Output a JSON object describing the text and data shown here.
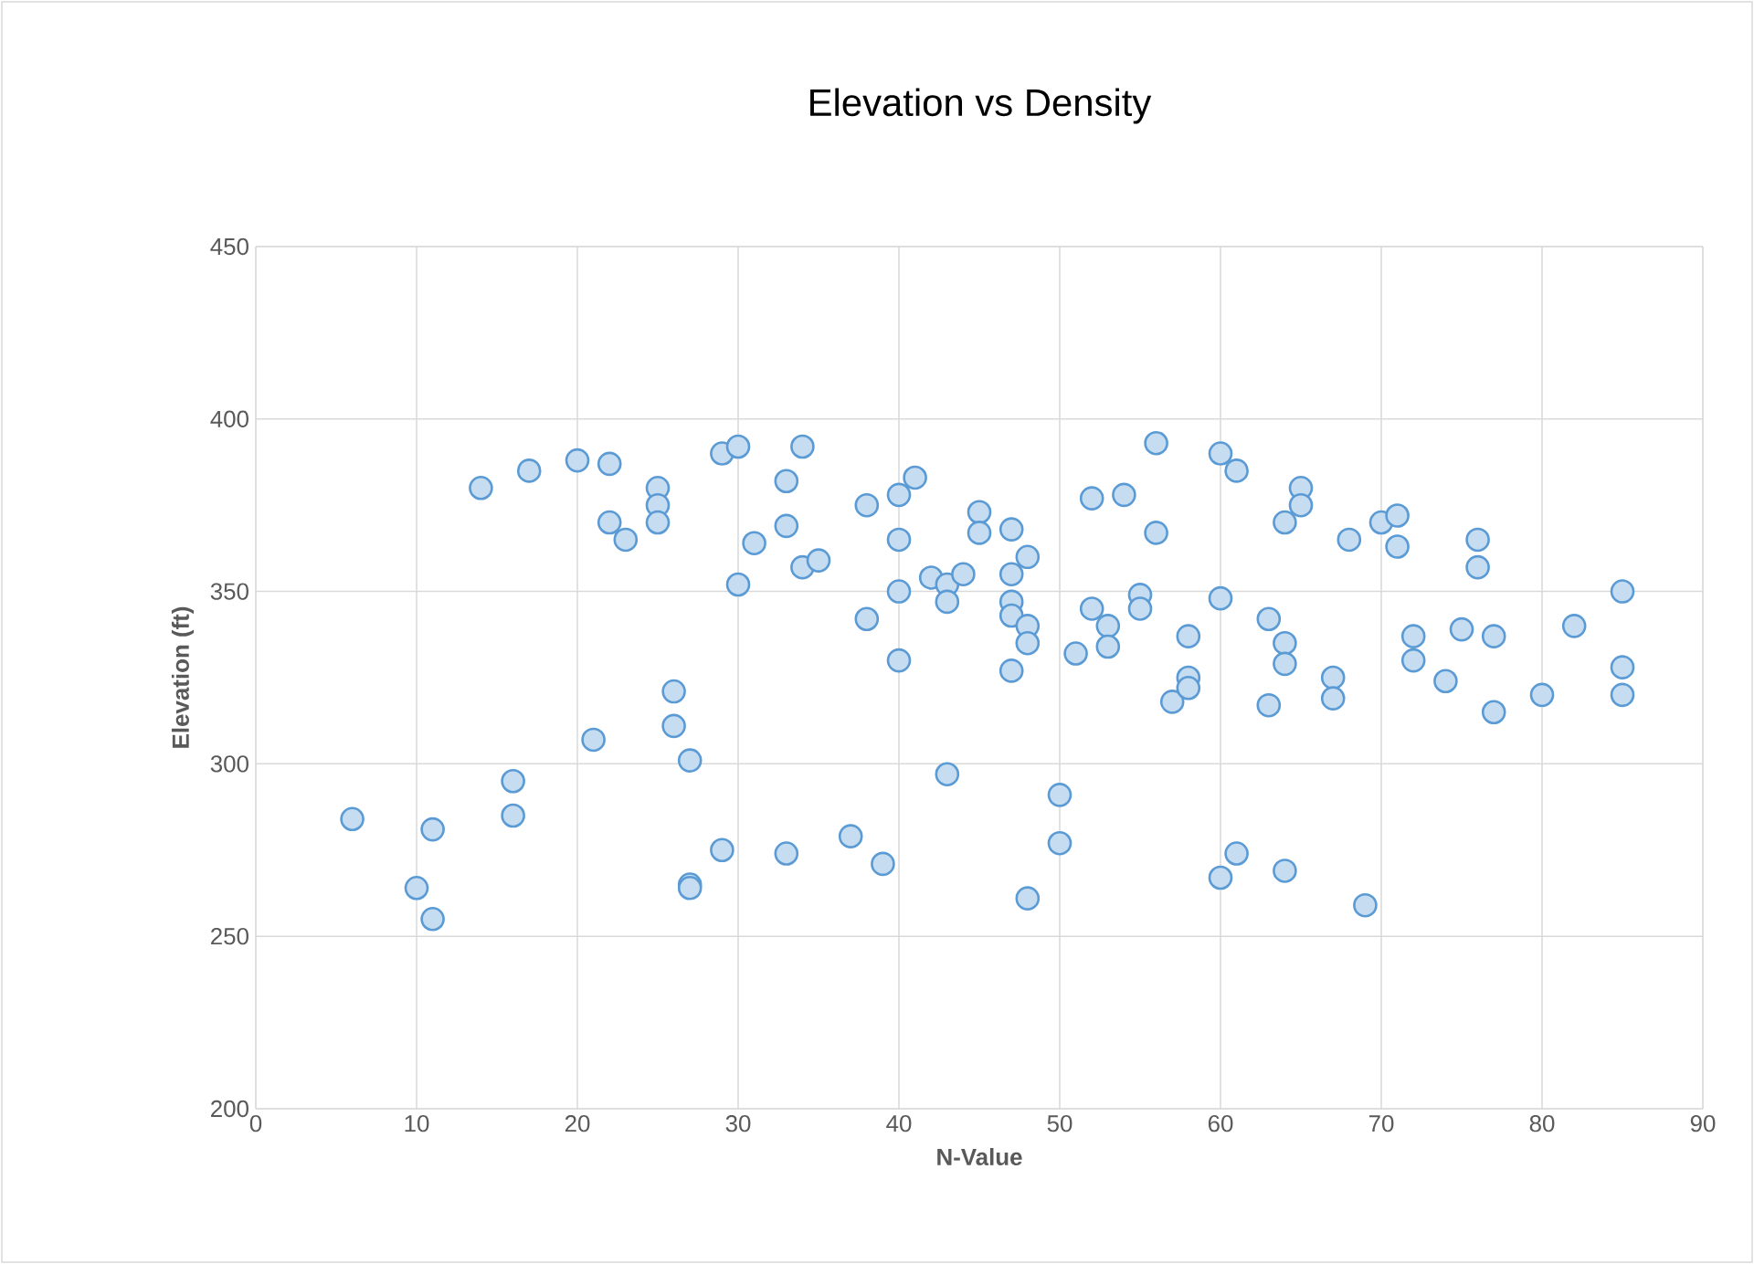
{
  "chart_data": {
    "type": "scatter",
    "title": "Elevation vs Density",
    "xlabel": "N-Value",
    "ylabel": "Elevation (ft)",
    "xlim": [
      0,
      90
    ],
    "xticks": [
      0,
      10,
      20,
      30,
      40,
      50,
      60,
      70,
      80,
      90
    ],
    "ylim": [
      200,
      450
    ],
    "yticks": [
      200,
      250,
      300,
      350,
      400,
      450
    ],
    "grid": true,
    "marker": "circle",
    "series": [
      {
        "color": "#5b9bd5",
        "x": [
          6,
          10,
          11,
          11,
          14,
          16,
          16,
          17,
          20,
          21,
          22,
          22,
          23,
          25,
          25,
          25,
          26,
          26,
          27,
          27,
          27,
          29,
          29,
          30,
          30,
          31,
          33,
          33,
          33,
          34,
          34,
          35,
          37,
          38,
          38,
          39,
          40,
          40,
          40,
          40,
          41,
          42,
          43,
          43,
          43,
          44,
          45,
          45,
          47,
          47,
          47,
          47,
          47,
          48,
          48,
          48,
          48,
          50,
          50,
          51,
          52,
          52,
          53,
          53,
          54,
          55,
          55,
          56,
          56,
          57,
          58,
          58,
          58,
          60,
          60,
          60,
          61,
          61,
          63,
          63,
          64,
          64,
          64,
          64,
          65,
          65,
          67,
          67,
          68,
          69,
          70,
          71,
          71,
          72,
          72,
          74,
          75,
          76,
          76,
          77,
          77,
          80,
          82,
          85,
          85,
          85
        ],
        "values": [
          284,
          264,
          281,
          255,
          380,
          295,
          285,
          385,
          388,
          307,
          387,
          370,
          365,
          380,
          375,
          370,
          321,
          311,
          301,
          265,
          264,
          390,
          275,
          392,
          352,
          364,
          382,
          369,
          274,
          392,
          357,
          359,
          279,
          375,
          342,
          271,
          378,
          365,
          350,
          330,
          383,
          354,
          352,
          347,
          297,
          355,
          373,
          367,
          368,
          355,
          347,
          343,
          327,
          360,
          340,
          335,
          261,
          291,
          277,
          332,
          377,
          345,
          340,
          334,
          378,
          349,
          345,
          393,
          367,
          318,
          337,
          325,
          322,
          390,
          348,
          267,
          385,
          274,
          342,
          317,
          370,
          335,
          329,
          269,
          380,
          375,
          325,
          319,
          365,
          259,
          370,
          372,
          363,
          337,
          330,
          324,
          339,
          365,
          357,
          337,
          315,
          320,
          340,
          350,
          328,
          320
        ]
      }
    ]
  }
}
